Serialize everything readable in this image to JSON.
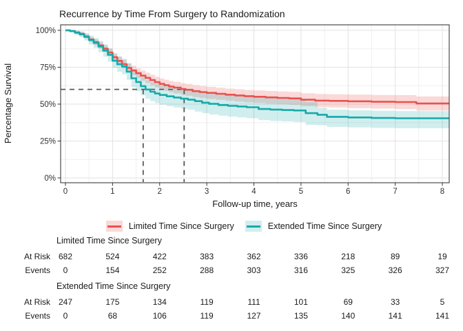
{
  "chart_data": {
    "type": "line",
    "subtype": "kaplan-meier-survival",
    "title": "Recurrence by Time From Surgery to Randomization",
    "xlabel": "Follow-up time, years",
    "ylabel": "Percentage Survival",
    "xlim": [
      0,
      8.15
    ],
    "ylim": [
      0,
      100
    ],
    "x_ticks": [
      0,
      1,
      2,
      3,
      4,
      5,
      6,
      7,
      8
    ],
    "x_tick_labels": [
      "0",
      "1",
      "2",
      "3",
      "4",
      "5",
      "6",
      "7",
      "8"
    ],
    "y_ticks": [
      0,
      25,
      50,
      75,
      100
    ],
    "y_tick_labels": [
      "0%",
      "25%",
      "50%",
      "75%",
      "100%"
    ],
    "grid": "major-and-minor",
    "legend_position": "bottom",
    "reference_dashed_lines": {
      "survival_pct": 60,
      "times_years": [
        1.65,
        2.52
      ],
      "color": "#595959"
    },
    "series": [
      {
        "name": "Limited Time Since Surgery",
        "line_color": "#E8524E",
        "band_color": "rgba(232,82,78,0.22)",
        "points_x_surv_lo_hi": [
          [
            0,
            100,
            100,
            100
          ],
          [
            0.1,
            99.6,
            99.2,
            100
          ],
          [
            0.2,
            98.6,
            97.8,
            99.4
          ],
          [
            0.3,
            97.6,
            96.5,
            98.7
          ],
          [
            0.4,
            95.9,
            94.5,
            97.3
          ],
          [
            0.5,
            93.8,
            92.1,
            95.5
          ],
          [
            0.6,
            92.0,
            90.1,
            93.9
          ],
          [
            0.7,
            89.8,
            87.7,
            91.9
          ],
          [
            0.8,
            87.6,
            85.3,
            89.9
          ],
          [
            0.9,
            85.0,
            82.5,
            87.5
          ],
          [
            1.0,
            81.8,
            79.1,
            84.5
          ],
          [
            1.1,
            79.3,
            76.4,
            82.2
          ],
          [
            1.2,
            77.1,
            74.1,
            80.1
          ],
          [
            1.3,
            74.6,
            71.5,
            77.7
          ],
          [
            1.4,
            72.8,
            69.6,
            76.0
          ],
          [
            1.5,
            71.0,
            67.7,
            74.3
          ],
          [
            1.6,
            69.3,
            65.9,
            72.7
          ],
          [
            1.7,
            67.8,
            64.3,
            71.3
          ],
          [
            1.8,
            66.3,
            62.7,
            69.9
          ],
          [
            1.9,
            64.9,
            61.3,
            68.5
          ],
          [
            2.0,
            63.7,
            60.0,
            67.4
          ],
          [
            2.1,
            62.8,
            59.0,
            66.6
          ],
          [
            2.2,
            61.9,
            58.1,
            65.7
          ],
          [
            2.3,
            61.2,
            57.3,
            65.1
          ],
          [
            2.45,
            60.3,
            56.4,
            64.2
          ],
          [
            2.55,
            59.7,
            55.7,
            63.7
          ],
          [
            2.7,
            58.8,
            54.8,
            62.8
          ],
          [
            2.85,
            58.2,
            54.1,
            62.3
          ],
          [
            3.0,
            57.6,
            53.5,
            61.7
          ],
          [
            3.2,
            57.0,
            52.9,
            61.1
          ],
          [
            3.4,
            56.4,
            52.3,
            60.5
          ],
          [
            3.6,
            55.9,
            51.7,
            60.1
          ],
          [
            3.8,
            55.4,
            51.2,
            59.6
          ],
          [
            4.0,
            55.0,
            50.8,
            59.2
          ],
          [
            4.25,
            54.6,
            50.3,
            58.9
          ],
          [
            4.5,
            54.2,
            49.9,
            58.5
          ],
          [
            4.75,
            53.9,
            49.5,
            58.3
          ],
          [
            5.0,
            53.0,
            48.6,
            57.4
          ],
          [
            5.3,
            52.4,
            48.0,
            56.8
          ],
          [
            5.6,
            52.2,
            47.7,
            56.7
          ],
          [
            6.0,
            51.9,
            47.3,
            56.5
          ],
          [
            6.5,
            51.6,
            47.0,
            56.2
          ],
          [
            7.0,
            51.4,
            46.7,
            56.1
          ],
          [
            7.45,
            50.4,
            45.6,
            55.2
          ],
          [
            8.15,
            50.4,
            45.6,
            55.2
          ]
        ]
      },
      {
        "name": "Extended Time Since Surgery",
        "line_color": "#17A9A9",
        "band_color": "rgba(23,169,169,0.20)",
        "points_x_surv_lo_hi": [
          [
            0,
            100,
            100,
            100
          ],
          [
            0.1,
            99.5,
            98.6,
            100
          ],
          [
            0.2,
            98.4,
            96.8,
            100
          ],
          [
            0.3,
            97.3,
            95.3,
            99.3
          ],
          [
            0.4,
            95.6,
            93.1,
            98.1
          ],
          [
            0.5,
            93.4,
            90.4,
            96.4
          ],
          [
            0.6,
            91.5,
            88.1,
            94.9
          ],
          [
            0.7,
            89.0,
            85.2,
            92.8
          ],
          [
            0.8,
            86.3,
            82.1,
            90.5
          ],
          [
            0.9,
            83.4,
            78.8,
            88.0
          ],
          [
            1.0,
            79.4,
            74.5,
            84.3
          ],
          [
            1.1,
            77.0,
            71.8,
            82.2
          ],
          [
            1.2,
            75.5,
            70.2,
            80.8
          ],
          [
            1.3,
            72.0,
            66.4,
            77.6
          ],
          [
            1.4,
            67.5,
            61.6,
            73.4
          ],
          [
            1.5,
            65.0,
            58.9,
            71.1
          ],
          [
            1.6,
            62.2,
            56.0,
            68.4
          ],
          [
            1.7,
            59.9,
            53.6,
            66.2
          ],
          [
            1.8,
            58.4,
            52.0,
            64.8
          ],
          [
            1.9,
            57.2,
            50.7,
            63.7
          ],
          [
            2.0,
            56.2,
            49.6,
            62.8
          ],
          [
            2.15,
            55.3,
            48.6,
            62.0
          ],
          [
            2.3,
            54.5,
            47.7,
            61.3
          ],
          [
            2.45,
            53.7,
            46.9,
            60.5
          ],
          [
            2.6,
            53.0,
            46.1,
            59.9
          ],
          [
            2.75,
            52.0,
            45.0,
            59.0
          ],
          [
            2.9,
            51.0,
            43.9,
            58.1
          ],
          [
            3.05,
            50.2,
            43.0,
            57.4
          ],
          [
            3.25,
            49.4,
            42.1,
            56.7
          ],
          [
            3.45,
            48.9,
            41.5,
            56.3
          ],
          [
            3.65,
            48.4,
            41.0,
            55.8
          ],
          [
            3.85,
            47.9,
            40.4,
            55.4
          ],
          [
            4.1,
            46.7,
            39.1,
            54.3
          ],
          [
            4.35,
            46.3,
            38.6,
            54.0
          ],
          [
            4.6,
            46.0,
            38.3,
            53.7
          ],
          [
            4.85,
            45.7,
            37.9,
            53.5
          ],
          [
            5.1,
            43.9,
            35.9,
            51.5
          ],
          [
            5.35,
            42.8,
            35.6,
            47.5
          ],
          [
            5.55,
            41.4,
            34.6,
            46.2
          ],
          [
            6.0,
            41.0,
            34.2,
            45.8
          ],
          [
            6.5,
            40.6,
            33.9,
            45.5
          ],
          [
            7.0,
            40.4,
            33.7,
            45.3
          ],
          [
            8.15,
            40.4,
            33.7,
            45.3
          ]
        ]
      }
    ]
  },
  "legend": {
    "items": [
      {
        "label": "Limited Time Since Surgery"
      },
      {
        "label": "Extended Time Since Surgery"
      }
    ]
  },
  "risk_table": {
    "row_labels": [
      "At Risk",
      "Events"
    ],
    "time_points": [
      0,
      1,
      2,
      3,
      4,
      5,
      6,
      7,
      8
    ],
    "groups": [
      {
        "name": "Limited Time Since Surgery",
        "at_risk": [
          682,
          524,
          422,
          383,
          362,
          336,
          218,
          89,
          19
        ],
        "events": [
          0,
          154,
          252,
          288,
          303,
          316,
          325,
          326,
          327
        ]
      },
      {
        "name": "Extended Time Since Surgery",
        "at_risk": [
          247,
          175,
          134,
          119,
          111,
          101,
          69,
          33,
          5
        ],
        "events": [
          0,
          68,
          106,
          119,
          127,
          135,
          140,
          141,
          141
        ]
      }
    ]
  }
}
